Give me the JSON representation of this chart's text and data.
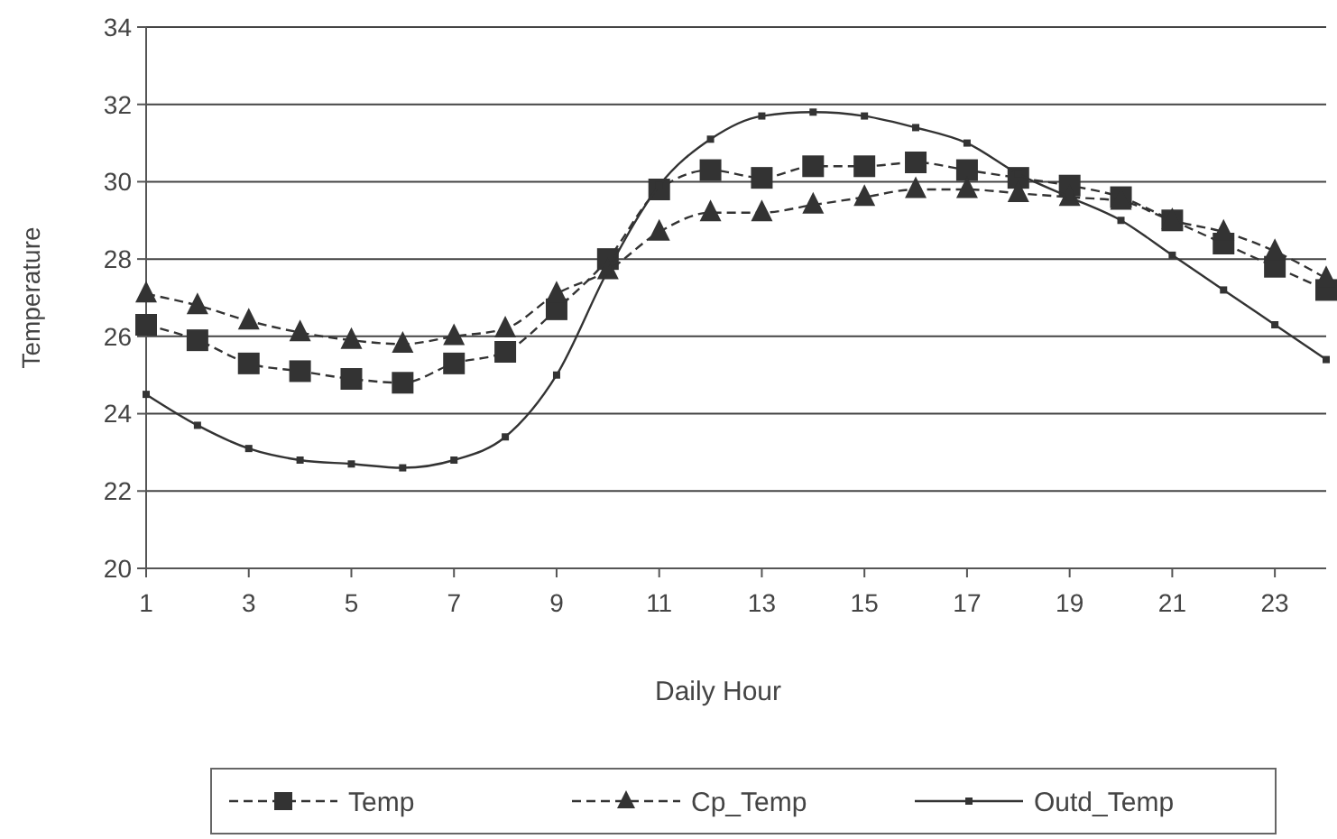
{
  "chart_data": {
    "type": "line",
    "xlabel": "Daily Hour",
    "ylabel": "Temperature",
    "x": [
      1,
      2,
      3,
      4,
      5,
      6,
      7,
      8,
      9,
      10,
      11,
      12,
      13,
      14,
      15,
      16,
      17,
      18,
      19,
      20,
      21,
      22,
      23,
      24
    ],
    "xlim": [
      1,
      24
    ],
    "xticks": [
      1,
      3,
      5,
      7,
      9,
      11,
      13,
      15,
      17,
      19,
      21,
      23
    ],
    "ylim": [
      20,
      34
    ],
    "yticks": [
      20,
      22,
      24,
      26,
      28,
      30,
      32,
      34
    ],
    "grid": "y",
    "legend": "bottom",
    "series": [
      {
        "name": "Temp",
        "color": "#333333",
        "marker": "square",
        "line_style": "dashed",
        "values": [
          26.3,
          25.9,
          25.3,
          25.1,
          24.9,
          24.8,
          25.3,
          25.6,
          26.7,
          28.0,
          29.8,
          30.3,
          30.1,
          30.4,
          30.4,
          30.5,
          30.3,
          30.1,
          29.9,
          29.6,
          29.0,
          28.4,
          27.8,
          27.2
        ]
      },
      {
        "name": "Cp_Temp",
        "color": "#333333",
        "marker": "triangle",
        "line_style": "dashed",
        "values": [
          27.1,
          26.8,
          26.4,
          26.1,
          25.9,
          25.8,
          26.0,
          26.2,
          27.1,
          27.7,
          28.7,
          29.2,
          29.2,
          29.4,
          29.6,
          29.8,
          29.8,
          29.7,
          29.6,
          29.5,
          29.0,
          28.7,
          28.2,
          27.5
        ]
      },
      {
        "name": "Outd_Temp",
        "color": "#333333",
        "marker": "square",
        "line_style": "solid",
        "values": [
          24.5,
          23.7,
          23.1,
          22.8,
          22.7,
          22.6,
          22.8,
          23.4,
          25.0,
          27.7,
          29.9,
          31.1,
          31.7,
          31.8,
          31.7,
          31.4,
          31.0,
          30.2,
          29.6,
          29.0,
          28.1,
          27.2,
          26.3,
          25.4
        ]
      }
    ]
  }
}
